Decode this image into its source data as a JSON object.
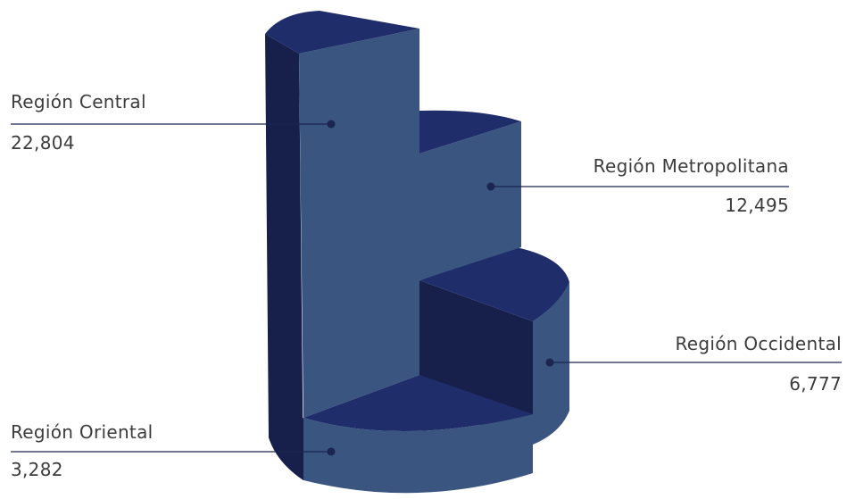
{
  "chart_data": {
    "type": "pie",
    "style": "3d-stepped-pie",
    "colors": {
      "top": "#1f2d6b",
      "front": "#3a5580",
      "side": "#16204a",
      "leader": "#1a2550"
    },
    "slices": [
      {
        "label": "Región Central",
        "value": 22804,
        "value_label": "22,804"
      },
      {
        "label": "Región Metropolitana",
        "value": 12495,
        "value_label": "12,495"
      },
      {
        "label": "Región Occidental",
        "value": 6777,
        "value_label": "6,777"
      },
      {
        "label": "Región Oriental",
        "value": 3282,
        "value_label": "3,282"
      }
    ]
  }
}
